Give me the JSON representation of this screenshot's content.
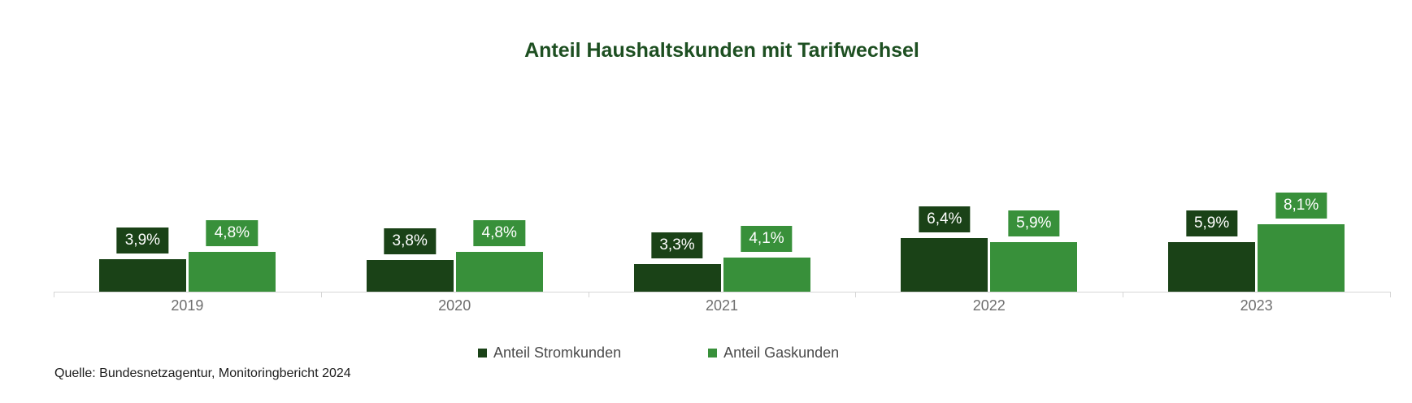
{
  "title": "Anteil Haushaltskunden mit Tarifwechsel",
  "source": "Quelle: Bundesnetzagentur, Monitoringbericht 2024",
  "colors": {
    "strom_dark_green": "#1a4217",
    "gas_green": "#38903a",
    "title_green": "#1d4f21",
    "axis_gray": "#d6d6d6",
    "x_label_gray": "#6e6e6e",
    "legend_text_gray": "#4b4b4b"
  },
  "legend": [
    {
      "label": "Anteil Stromkunden",
      "color": "#1a4217"
    },
    {
      "label": "Anteil Gaskunden",
      "color": "#38903a"
    }
  ],
  "chart_data": {
    "type": "bar",
    "title": "Anteil Haushaltskunden mit Tarifwechsel",
    "categories": [
      "2019",
      "2020",
      "2021",
      "2022",
      "2023"
    ],
    "series": [
      {
        "name": "Anteil Stromkunden",
        "color": "#1a4217",
        "values": [
          3.9,
          3.8,
          3.3,
          6.4,
          5.9
        ],
        "labels": [
          "3,9%",
          "3,8%",
          "3,3%",
          "6,4%",
          "5,9%"
        ]
      },
      {
        "name": "Anteil Gaskunden",
        "color": "#38903a",
        "values": [
          4.8,
          4.8,
          4.1,
          5.9,
          8.1
        ],
        "labels": [
          "4,8%",
          "4,8%",
          "4,1%",
          "5,9%",
          "8,1%"
        ]
      }
    ],
    "xlabel": "",
    "ylabel": "",
    "ylim": [
      0,
      8.5
    ],
    "value_suffix": "%",
    "grid": false,
    "y_axis_visible": false,
    "data_labels": true,
    "legend_position": "bottom",
    "source_note": "Quelle: Bundesnetzagentur, Monitoringbericht 2024"
  }
}
